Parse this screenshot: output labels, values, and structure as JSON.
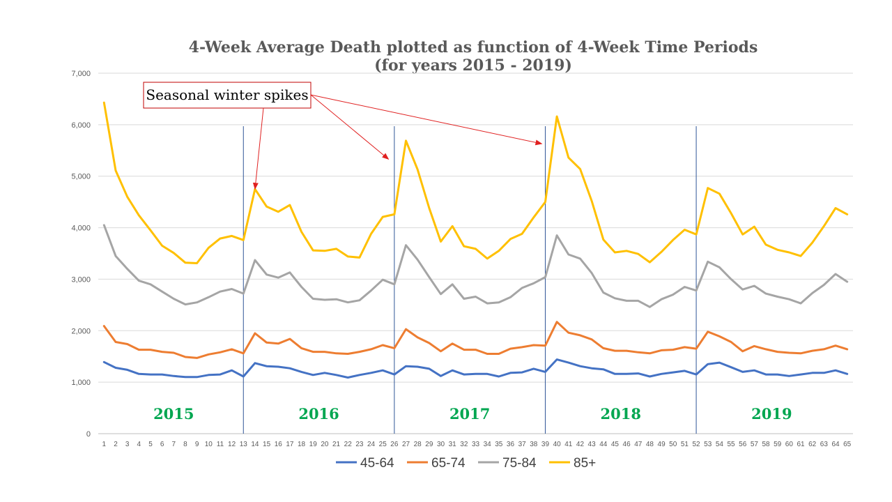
{
  "chart_data": {
    "type": "line",
    "title": "4-Week Average Death plotted as function of 4-Week Time Periods",
    "subtitle": "(for years 2015 - 2019)",
    "xlabel": "",
    "ylabel": "",
    "ylim": [
      0,
      7000
    ],
    "yticks": [
      0,
      1000,
      2000,
      3000,
      4000,
      5000,
      6000,
      7000
    ],
    "ytick_labels": [
      "0",
      "1,000",
      "2,000",
      "3,000",
      "4,000",
      "5,000",
      "6,000",
      "7,000"
    ],
    "x": [
      1,
      2,
      3,
      4,
      5,
      6,
      7,
      8,
      9,
      10,
      11,
      12,
      13,
      14,
      15,
      16,
      17,
      18,
      19,
      20,
      21,
      22,
      23,
      24,
      25,
      26,
      27,
      28,
      29,
      30,
      31,
      32,
      33,
      34,
      35,
      36,
      37,
      38,
      39,
      40,
      41,
      42,
      43,
      44,
      45,
      46,
      47,
      48,
      49,
      50,
      51,
      52,
      53,
      54,
      55,
      56,
      57,
      58,
      59,
      60,
      61,
      62,
      63,
      64,
      65
    ],
    "grid": true,
    "legend_position": "bottom",
    "series": [
      {
        "name": "45-64",
        "color": "#4472c4",
        "values": [
          1390,
          1280,
          1240,
          1160,
          1150,
          1150,
          1120,
          1100,
          1100,
          1140,
          1150,
          1230,
          1110,
          1370,
          1310,
          1300,
          1270,
          1200,
          1140,
          1180,
          1140,
          1090,
          1140,
          1180,
          1230,
          1150,
          1310,
          1300,
          1260,
          1120,
          1230,
          1150,
          1160,
          1160,
          1110,
          1180,
          1190,
          1260,
          1200,
          1440,
          1380,
          1310,
          1270,
          1250,
          1160,
          1160,
          1170,
          1110,
          1160,
          1190,
          1220,
          1150,
          1350,
          1380,
          1290,
          1200,
          1230,
          1150,
          1150,
          1120,
          1150,
          1180,
          1180,
          1230,
          1160
        ]
      },
      {
        "name": "65-74",
        "color": "#ed7d31",
        "values": [
          2090,
          1780,
          1740,
          1630,
          1630,
          1590,
          1570,
          1490,
          1470,
          1540,
          1580,
          1640,
          1560,
          1950,
          1770,
          1750,
          1840,
          1660,
          1590,
          1590,
          1560,
          1550,
          1590,
          1640,
          1720,
          1660,
          2030,
          1870,
          1760,
          1600,
          1750,
          1630,
          1630,
          1550,
          1550,
          1650,
          1680,
          1720,
          1710,
          2170,
          1960,
          1910,
          1830,
          1660,
          1610,
          1610,
          1580,
          1560,
          1620,
          1630,
          1680,
          1650,
          1980,
          1890,
          1780,
          1600,
          1700,
          1640,
          1590,
          1570,
          1560,
          1610,
          1640,
          1710,
          1640
        ]
      },
      {
        "name": "75-84",
        "color": "#a5a5a5",
        "values": [
          4050,
          3450,
          3200,
          2970,
          2900,
          2760,
          2620,
          2510,
          2550,
          2650,
          2760,
          2810,
          2720,
          3370,
          3090,
          3030,
          3130,
          2850,
          2620,
          2600,
          2610,
          2550,
          2590,
          2780,
          2990,
          2900,
          3660,
          3380,
          3040,
          2710,
          2900,
          2620,
          2660,
          2530,
          2550,
          2650,
          2830,
          2920,
          3040,
          3850,
          3480,
          3400,
          3120,
          2740,
          2630,
          2580,
          2580,
          2460,
          2610,
          2700,
          2850,
          2780,
          3340,
          3230,
          3000,
          2800,
          2870,
          2720,
          2660,
          2610,
          2530,
          2730,
          2890,
          3100,
          2950
        ]
      },
      {
        "name": "85+",
        "color": "#ffc000",
        "values": [
          6430,
          5110,
          4600,
          4240,
          3950,
          3650,
          3510,
          3320,
          3310,
          3610,
          3790,
          3840,
          3760,
          4750,
          4410,
          4310,
          4440,
          3920,
          3560,
          3550,
          3590,
          3440,
          3420,
          3880,
          4210,
          4260,
          5690,
          5130,
          4380,
          3730,
          4030,
          3640,
          3590,
          3400,
          3550,
          3780,
          3880,
          4200,
          4500,
          6160,
          5360,
          5140,
          4520,
          3770,
          3520,
          3550,
          3490,
          3330,
          3530,
          3760,
          3960,
          3870,
          4770,
          4660,
          4280,
          3870,
          4020,
          3670,
          3570,
          3520,
          3450,
          3710,
          4030,
          4380,
          4260
        ]
      }
    ],
    "year_dividers": [
      13,
      26,
      39,
      52
    ],
    "year_labels": [
      {
        "text": "2015",
        "x": 7
      },
      {
        "text": "2016",
        "x": 19.5
      },
      {
        "text": "2017",
        "x": 32.5
      },
      {
        "text": "2018",
        "x": 45.5
      },
      {
        "text": "2019",
        "x": 58.5
      }
    ],
    "annotation": {
      "text": "Seasonal winter spikes",
      "targets": [
        {
          "x": 14,
          "y": 4750
        },
        {
          "x": 25.5,
          "y": 5330
        },
        {
          "x": 38.7,
          "y": 5630
        }
      ]
    }
  }
}
